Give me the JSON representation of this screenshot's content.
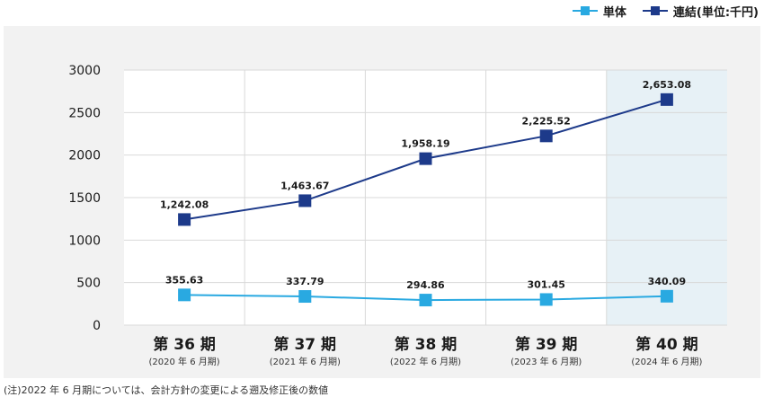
{
  "legend": [
    {
      "name": "単体",
      "color": "#29a9e1"
    },
    {
      "name": "連結(単位:千円)",
      "color": "#1d3a8a"
    }
  ],
  "footnote": "(注)2022 年 6 月期については、会計方針の変更による遡及修正後の数値",
  "colors": {
    "single": "#29a9e1",
    "consolidated": "#1d3a8a",
    "plot_bg": "#ffffff",
    "highlight_bg": "#e7f1f6",
    "panel_bg": "#f2f2f2",
    "grid": "#d9d9d9"
  },
  "chart_data": {
    "type": "line",
    "categories": [
      "第 36 期",
      "第 37 期",
      "第 38 期",
      "第 39 期",
      "第 40 期"
    ],
    "category_sublabels": [
      "(2020 年 6 月期)",
      "(2021 年 6 月期)",
      "(2022 年 6 月期)",
      "(2023 年 6 月期)",
      "(2024 年 6 月期)"
    ],
    "highlighted_category": "第 40 期",
    "series": [
      {
        "name": "単体",
        "values": [
          355.63,
          337.79,
          294.86,
          301.45,
          340.09
        ],
        "labels": [
          "355.63",
          "337.79",
          "294.86",
          "301.45",
          "340.09"
        ]
      },
      {
        "name": "連結",
        "values": [
          1242.08,
          1463.67,
          1958.19,
          2225.52,
          2653.08
        ],
        "labels": [
          "1,242.08",
          "1,463.67",
          "1,958.19",
          "2,225.52",
          "2,653.08"
        ]
      }
    ],
    "ylim": [
      0,
      3000
    ],
    "yticks": [
      "0",
      "500",
      "1000",
      "1500",
      "2000",
      "2500",
      "3000"
    ],
    "ytick_values": [
      0,
      500,
      1000,
      1500,
      2000,
      2500,
      3000
    ],
    "grid": true,
    "legend_position": "top-right",
    "unit": "千円"
  }
}
